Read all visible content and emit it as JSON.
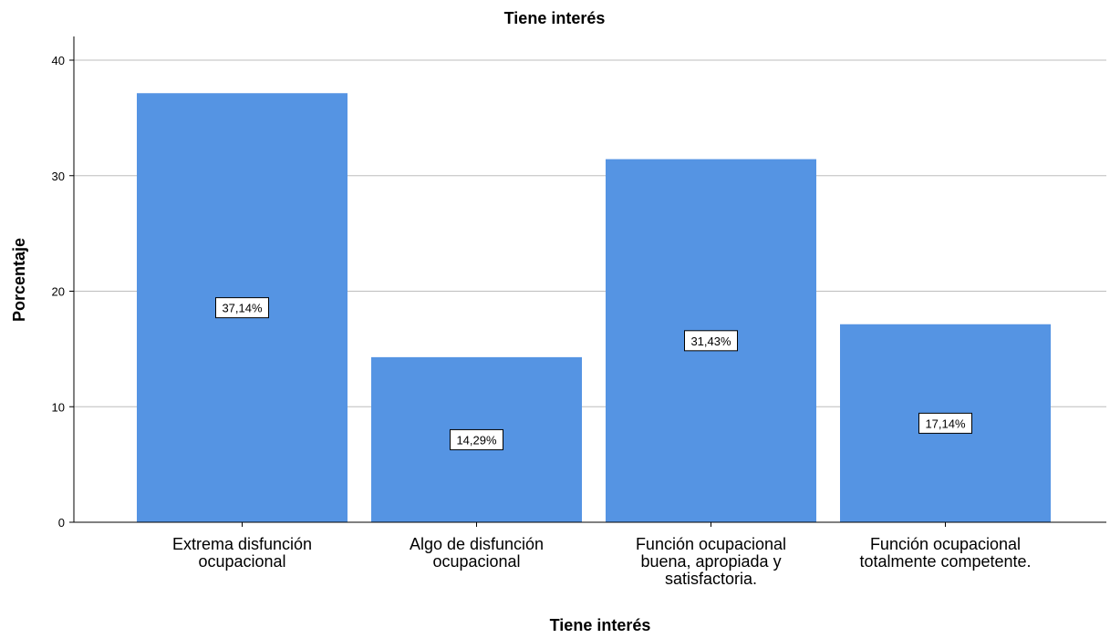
{
  "chart_data": {
    "type": "bar",
    "title": "Tiene interés",
    "xlabel": "Tiene interés",
    "ylabel": "Porcentaje",
    "categories": [
      [
        "Extrema disfunción",
        "ocupacional"
      ],
      [
        "Algo de disfunción",
        "ocupacional"
      ],
      [
        "Función ocupacional",
        "buena, apropiada y",
        "satisfactoria."
      ],
      [
        "Función ocupacional",
        "totalmente competente."
      ]
    ],
    "values": [
      37.14,
      14.29,
      31.43,
      17.14
    ],
    "data_labels": [
      "37,14%",
      "14,29%",
      "31,43%",
      "17,14%"
    ],
    "ylim": [
      0,
      40
    ],
    "yticks": [
      0,
      10,
      20,
      30,
      40
    ],
    "grid": true,
    "colors": {
      "bar": "#5594e3",
      "grid": "#bdbdbd",
      "axis": "#000000",
      "label_box_fill": "#ffffff",
      "label_box_stroke": "#000000"
    }
  }
}
